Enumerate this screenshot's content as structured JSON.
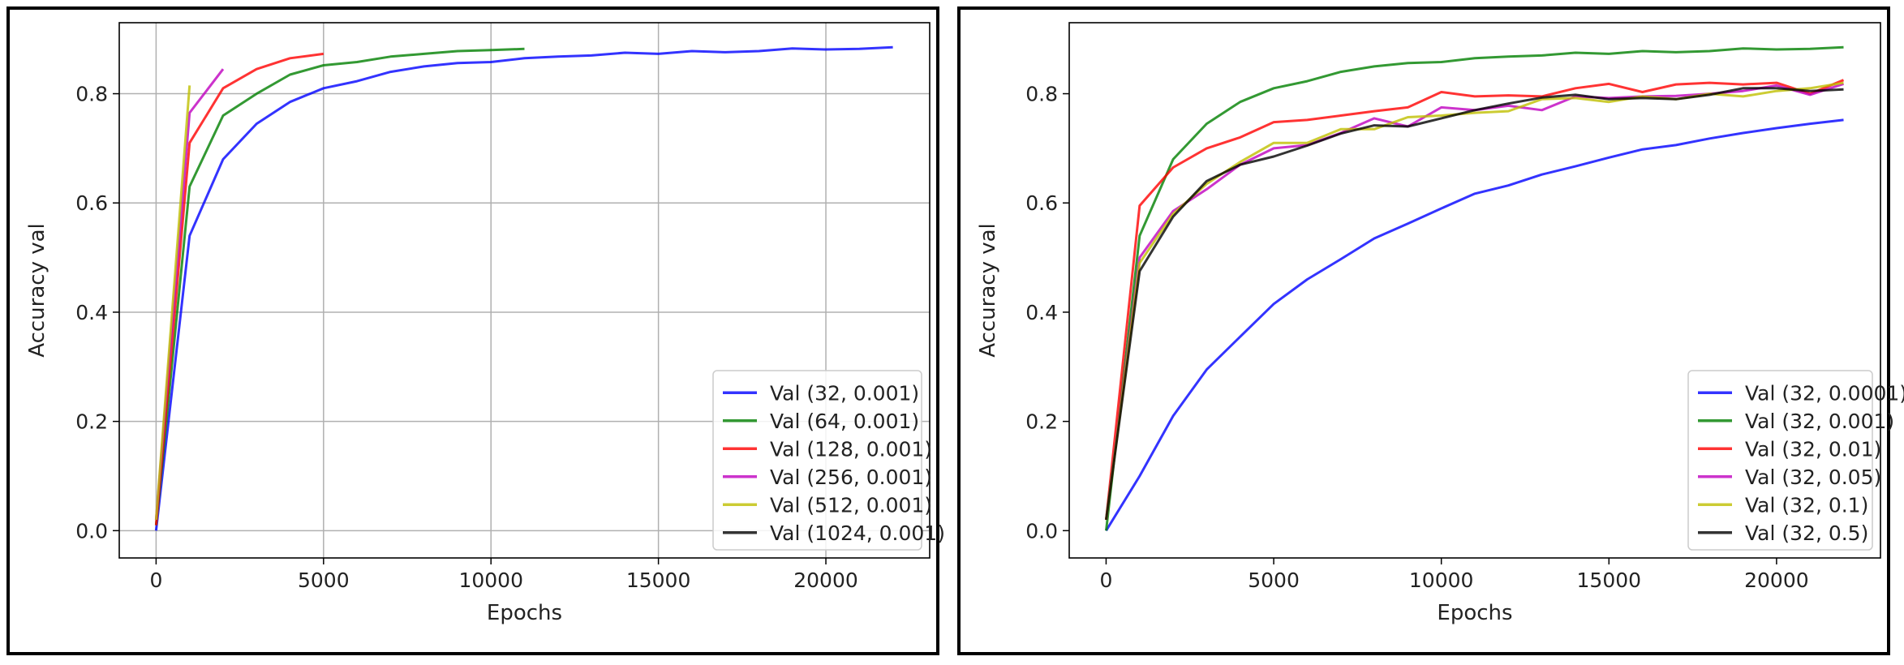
{
  "chart_data": [
    {
      "type": "line",
      "title": "",
      "xlabel": "Epochs",
      "ylabel": "Accuracy val",
      "xlim": [
        -1100,
        23100
      ],
      "ylim": [
        -0.05,
        0.93
      ],
      "xticks": [
        0,
        5000,
        10000,
        15000,
        20000
      ],
      "xtick_labels": [
        "0",
        "5000",
        "10000",
        "15000",
        "20000"
      ],
      "yticks": [
        0.0,
        0.2,
        0.4,
        0.6,
        0.8
      ],
      "ytick_labels": [
        "0.0",
        "0.2",
        "0.4",
        "0.6",
        "0.8"
      ],
      "grid": true,
      "legend_position": "lower-right",
      "series": [
        {
          "name": "Val (32, 0.001)",
          "color": "#0000ff",
          "x": [
            0,
            1000,
            2000,
            3000,
            4000,
            5000,
            6000,
            7000,
            8000,
            9000,
            10000,
            11000,
            12000,
            13000,
            14000,
            15000,
            16000,
            17000,
            18000,
            19000,
            20000,
            21000,
            22000
          ],
          "y": [
            0.0,
            0.54,
            0.68,
            0.745,
            0.785,
            0.81,
            0.823,
            0.84,
            0.85,
            0.856,
            0.858,
            0.865,
            0.868,
            0.87,
            0.875,
            0.873,
            0.878,
            0.876,
            0.878,
            0.883,
            0.881,
            0.882,
            0.885
          ]
        },
        {
          "name": "Val (64, 0.001)",
          "color": "#008000",
          "x": [
            0,
            1000,
            2000,
            3000,
            4000,
            5000,
            6000,
            7000,
            8000,
            9000,
            10000,
            11000
          ],
          "y": [
            0.01,
            0.63,
            0.76,
            0.8,
            0.835,
            0.852,
            0.858,
            0.868,
            0.873,
            0.878,
            0.88,
            0.882
          ]
        },
        {
          "name": "Val (128, 0.001)",
          "color": "#ff0000",
          "x": [
            0,
            1000,
            2000,
            3000,
            4000,
            5000
          ],
          "y": [
            0.01,
            0.71,
            0.81,
            0.845,
            0.865,
            0.873
          ]
        },
        {
          "name": "Val (256, 0.001)",
          "color": "#bf00bf",
          "x": [
            0,
            1000,
            2000
          ],
          "y": [
            0.02,
            0.765,
            0.845
          ]
        },
        {
          "name": "Val (512, 0.001)",
          "color": "#bfbf00",
          "x": [
            0,
            1000
          ],
          "y": [
            0.02,
            0.815
          ]
        },
        {
          "name": "Val (1024, 0.001)",
          "color": "#000000",
          "x": [
            0
          ],
          "y": [
            0.0
          ]
        }
      ]
    },
    {
      "type": "line",
      "title": "",
      "xlabel": "Epochs",
      "ylabel": "Accuracy val",
      "xlim": [
        -1100,
        23100
      ],
      "ylim": [
        -0.05,
        0.93
      ],
      "xticks": [
        0,
        5000,
        10000,
        15000,
        20000
      ],
      "xtick_labels": [
        "0",
        "5000",
        "10000",
        "15000",
        "20000"
      ],
      "yticks": [
        0.0,
        0.2,
        0.4,
        0.6,
        0.8
      ],
      "ytick_labels": [
        "0.0",
        "0.2",
        "0.4",
        "0.6",
        "0.8"
      ],
      "grid": false,
      "legend_position": "lower-right",
      "series": [
        {
          "name": "Val (32, 0.0001)",
          "color": "#0000ff",
          "x": [
            0,
            1000,
            2000,
            3000,
            4000,
            5000,
            6000,
            7000,
            8000,
            9000,
            10000,
            11000,
            12000,
            13000,
            14000,
            15000,
            16000,
            17000,
            18000,
            19000,
            20000,
            21000,
            22000
          ],
          "y": [
            0.0,
            0.1,
            0.21,
            0.295,
            0.355,
            0.415,
            0.46,
            0.497,
            0.535,
            0.562,
            0.59,
            0.617,
            0.632,
            0.652,
            0.667,
            0.683,
            0.698,
            0.706,
            0.718,
            0.728,
            0.737,
            0.745,
            0.752
          ]
        },
        {
          "name": "Val (32, 0.001)",
          "color": "#008000",
          "x": [
            0,
            1000,
            2000,
            3000,
            4000,
            5000,
            6000,
            7000,
            8000,
            9000,
            10000,
            11000,
            12000,
            13000,
            14000,
            15000,
            16000,
            17000,
            18000,
            19000,
            20000,
            21000,
            22000
          ],
          "y": [
            0.0,
            0.54,
            0.68,
            0.745,
            0.785,
            0.81,
            0.823,
            0.84,
            0.85,
            0.856,
            0.858,
            0.865,
            0.868,
            0.87,
            0.875,
            0.873,
            0.878,
            0.876,
            0.878,
            0.883,
            0.881,
            0.882,
            0.885
          ]
        },
        {
          "name": "Val (32, 0.01)",
          "color": "#ff0000",
          "x": [
            0,
            1000,
            2000,
            3000,
            4000,
            5000,
            6000,
            7000,
            8000,
            9000,
            10000,
            11000,
            12000,
            13000,
            14000,
            15000,
            16000,
            17000,
            18000,
            19000,
            20000,
            21000,
            22000
          ],
          "y": [
            0.02,
            0.595,
            0.665,
            0.7,
            0.72,
            0.748,
            0.752,
            0.76,
            0.768,
            0.775,
            0.803,
            0.795,
            0.797,
            0.795,
            0.81,
            0.818,
            0.803,
            0.817,
            0.82,
            0.817,
            0.82,
            0.8,
            0.825
          ]
        },
        {
          "name": "Val (32, 0.05)",
          "color": "#bf00bf",
          "x": [
            0,
            1000,
            2000,
            3000,
            4000,
            5000,
            6000,
            7000,
            8000,
            9000,
            10000,
            11000,
            12000,
            13000,
            14000,
            15000,
            16000,
            17000,
            18000,
            19000,
            20000,
            21000,
            22000
          ],
          "y": [
            0.02,
            0.5,
            0.585,
            0.625,
            0.67,
            0.7,
            0.706,
            0.728,
            0.755,
            0.74,
            0.775,
            0.77,
            0.778,
            0.77,
            0.795,
            0.792,
            0.795,
            0.796,
            0.8,
            0.805,
            0.815,
            0.798,
            0.818
          ]
        },
        {
          "name": "Val (32, 0.1)",
          "color": "#bfbf00",
          "x": [
            0,
            1000,
            2000,
            3000,
            4000,
            5000,
            6000,
            7000,
            8000,
            9000,
            10000,
            11000,
            12000,
            13000,
            14000,
            15000,
            16000,
            17000,
            18000,
            19000,
            20000,
            21000,
            22000
          ],
          "y": [
            0.02,
            0.49,
            0.58,
            0.635,
            0.675,
            0.71,
            0.71,
            0.735,
            0.735,
            0.757,
            0.76,
            0.765,
            0.768,
            0.79,
            0.792,
            0.785,
            0.795,
            0.79,
            0.8,
            0.795,
            0.805,
            0.81,
            0.82
          ]
        },
        {
          "name": "Val (32, 0.5)",
          "color": "#000000",
          "x": [
            0,
            1000,
            2000,
            3000,
            4000,
            5000,
            6000,
            7000,
            8000,
            9000,
            10000,
            11000,
            12000,
            13000,
            14000,
            15000,
            16000,
            17000,
            18000,
            19000,
            20000,
            21000,
            22000
          ],
          "y": [
            0.02,
            0.475,
            0.575,
            0.64,
            0.67,
            0.685,
            0.705,
            0.727,
            0.742,
            0.74,
            0.755,
            0.77,
            0.782,
            0.793,
            0.798,
            0.79,
            0.792,
            0.79,
            0.798,
            0.81,
            0.81,
            0.805,
            0.808
          ]
        }
      ]
    }
  ]
}
